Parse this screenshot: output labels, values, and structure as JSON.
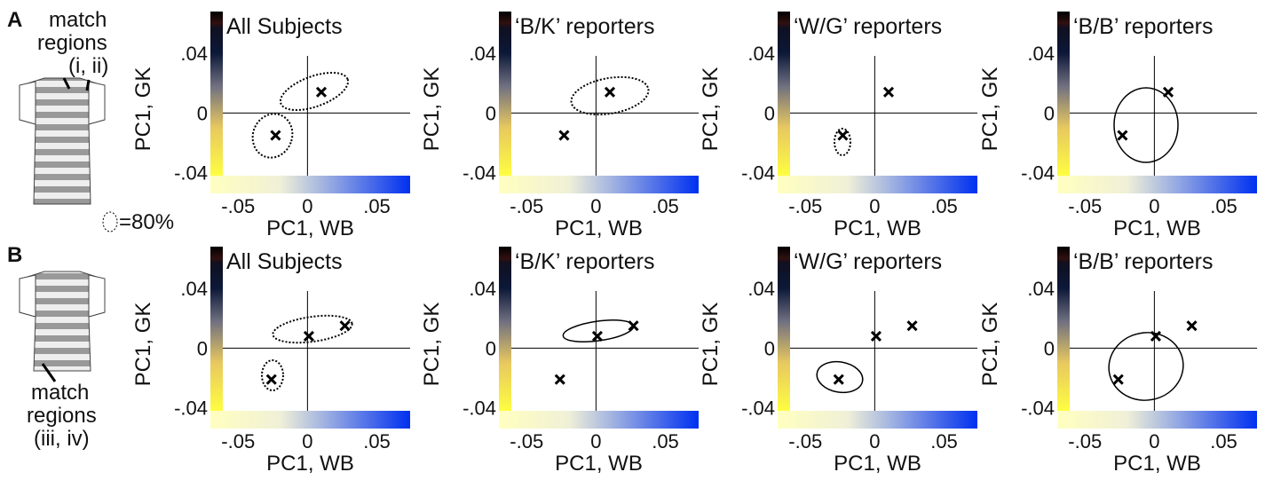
{
  "figure": {
    "label_a": "A",
    "label_b": "B",
    "regions_a": [
      "match",
      "regions",
      "(i, ii)"
    ],
    "regions_b": [
      "match",
      "regions",
      "(iii, iv)"
    ],
    "contour_note": "=80%"
  },
  "chart_data": [
    {
      "type": "scatter",
      "title": "All Subjects",
      "x_label": "PC1, WB",
      "y_label": "PC1, GK",
      "x": [
        0.01,
        -0.023
      ],
      "values": [
        0.014,
        -0.015
      ],
      "color": "#000000",
      "xlim": [
        -0.07,
        0.074
      ],
      "ylim": [
        -0.042,
        0.068
      ],
      "xticks": [
        {
          "value": -0.05,
          "label": "-.05"
        },
        0,
        {
          "value": 0.05,
          "label": ".05"
        }
      ],
      "yticks": [
        {
          "value": -0.04,
          "label": "-.04"
        },
        0,
        {
          "value": 0.04,
          "label": ".04"
        }
      ]
    },
    {
      "type": "scatter",
      "title": "‘B/K’ reporters",
      "x_label": "PC1, WB",
      "y_label": "PC1, GK",
      "x": [
        0.01,
        -0.023
      ],
      "values": [
        0.014,
        -0.015
      ],
      "color": "#000000",
      "xlim": [
        -0.07,
        0.074
      ],
      "ylim": [
        -0.042,
        0.068
      ],
      "xticks": [
        {
          "value": -0.05,
          "label": "-.05"
        },
        0,
        {
          "value": 0.05,
          "label": ".05"
        }
      ],
      "yticks": [
        {
          "value": -0.04,
          "label": "-.04"
        },
        0,
        {
          "value": 0.04,
          "label": ".04"
        }
      ]
    },
    {
      "type": "scatter",
      "title": "‘W/G’ reporters",
      "x_label": "PC1, WB",
      "y_label": "PC1, GK",
      "x": [
        0.01,
        -0.023
      ],
      "values": [
        0.014,
        -0.015
      ],
      "color": "#000000",
      "xlim": [
        -0.07,
        0.074
      ],
      "ylim": [
        -0.042,
        0.068
      ],
      "xticks": [
        {
          "value": -0.05,
          "label": "-.05"
        },
        0,
        {
          "value": 0.05,
          "label": ".05"
        }
      ],
      "yticks": [
        {
          "value": -0.04,
          "label": "-.04"
        },
        0,
        {
          "value": 0.04,
          "label": ".04"
        }
      ]
    },
    {
      "type": "scatter",
      "title": "‘B/B’ reporters",
      "x_label": "PC1, WB",
      "y_label": "PC1, GK",
      "x": [
        0.01,
        -0.023
      ],
      "values": [
        0.014,
        -0.015
      ],
      "color": "#000000",
      "xlim": [
        -0.07,
        0.074
      ],
      "ylim": [
        -0.042,
        0.068
      ],
      "xticks": [
        {
          "value": -0.05,
          "label": "-.05"
        },
        0,
        {
          "value": 0.05,
          "label": ".05"
        }
      ],
      "yticks": [
        {
          "value": -0.04,
          "label": "-.04"
        },
        0,
        {
          "value": 0.04,
          "label": ".04"
        }
      ]
    },
    {
      "type": "scatter",
      "title": "All Subjects",
      "x_label": "PC1, WB",
      "y_label": "PC1, GK",
      "x": [
        0.001,
        0.027,
        -0.026
      ],
      "values": [
        0.008,
        0.015,
        -0.021
      ],
      "color": "#000000",
      "xlim": [
        -0.07,
        0.074
      ],
      "ylim": [
        -0.042,
        0.068
      ],
      "xticks": [
        {
          "value": -0.05,
          "label": "-.05"
        },
        0,
        {
          "value": 0.05,
          "label": ".05"
        }
      ],
      "yticks": [
        {
          "value": -0.04,
          "label": "-.04"
        },
        0,
        {
          "value": 0.04,
          "label": ".04"
        }
      ]
    },
    {
      "type": "scatter",
      "title": "‘B/K’ reporters",
      "x_label": "PC1, WB",
      "y_label": "PC1, GK",
      "x": [
        0.001,
        0.027,
        -0.026
      ],
      "values": [
        0.008,
        0.015,
        -0.021
      ],
      "color": "#000000",
      "xlim": [
        -0.07,
        0.074
      ],
      "ylim": [
        -0.042,
        0.068
      ],
      "xticks": [
        {
          "value": -0.05,
          "label": "-.05"
        },
        0,
        {
          "value": 0.05,
          "label": ".05"
        }
      ],
      "yticks": [
        {
          "value": -0.04,
          "label": "-.04"
        },
        0,
        {
          "value": 0.04,
          "label": ".04"
        }
      ]
    },
    {
      "type": "scatter",
      "title": "‘W/G’ reporters",
      "x_label": "PC1, WB",
      "y_label": "PC1, GK",
      "x": [
        0.001,
        0.027,
        -0.026
      ],
      "values": [
        0.008,
        0.015,
        -0.021
      ],
      "color": "#000000",
      "xlim": [
        -0.07,
        0.074
      ],
      "ylim": [
        -0.042,
        0.068
      ],
      "xticks": [
        {
          "value": -0.05,
          "label": "-.05"
        },
        0,
        {
          "value": 0.05,
          "label": ".05"
        }
      ],
      "yticks": [
        {
          "value": -0.04,
          "label": "-.04"
        },
        0,
        {
          "value": 0.04,
          "label": ".04"
        }
      ]
    },
    {
      "type": "scatter",
      "title": "‘B/B’ reporters",
      "x_label": "PC1, WB",
      "y_label": "PC1, GK",
      "x": [
        0.001,
        0.027,
        -0.026
      ],
      "values": [
        0.008,
        0.015,
        -0.021
      ],
      "color": "#000000",
      "xlim": [
        -0.07,
        0.074
      ],
      "ylim": [
        -0.042,
        0.068
      ],
      "xticks": [
        {
          "value": -0.05,
          "label": "-.05"
        },
        0,
        {
          "value": 0.05,
          "label": ".05"
        }
      ],
      "yticks": [
        {
          "value": -0.04,
          "label": "-.04"
        },
        0,
        {
          "value": 0.04,
          "label": ".04"
        }
      ]
    }
  ]
}
